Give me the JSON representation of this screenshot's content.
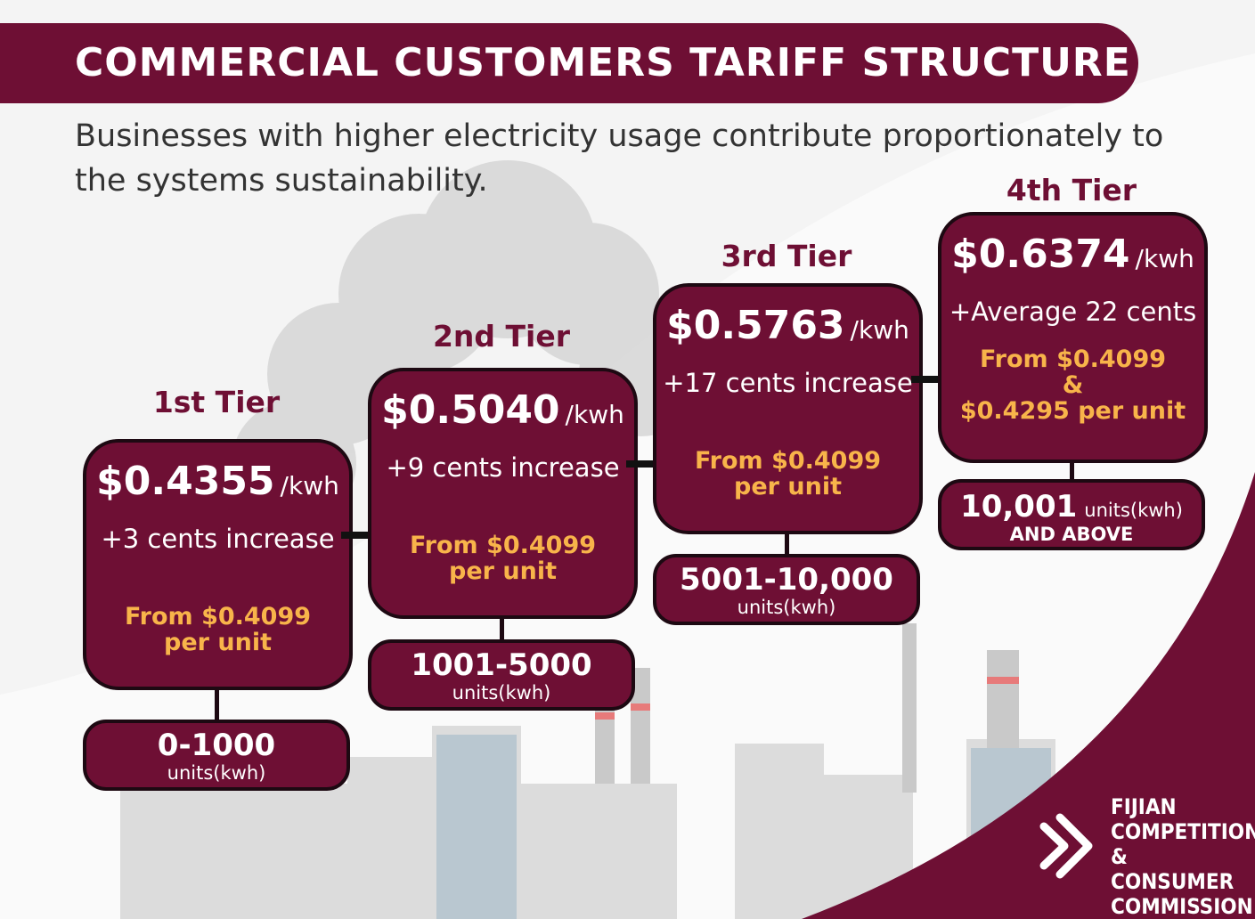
{
  "header": {
    "title": "COMMERCIAL CUSTOMERS TARIFF STRUCTURE",
    "subtitle": "Businesses with higher electricity usage contribute proportionately to the systems sustainability."
  },
  "tiers": [
    {
      "name": "1st Tier",
      "price": "$0.4355",
      "unit": "/kwh",
      "change": "+3 cents increase",
      "from": [
        "From $0.4099",
        "per unit"
      ],
      "range": "0-1000",
      "range_unit": "units(kwh)"
    },
    {
      "name": "2nd Tier",
      "price": "$0.5040",
      "unit": "/kwh",
      "change": "+9 cents increase",
      "from": [
        "From $0.4099",
        "per unit"
      ],
      "range": "1001-5000",
      "range_unit": "units(kwh)"
    },
    {
      "name": "3rd Tier",
      "price": "$0.5763",
      "unit": "/kwh",
      "change": "+17 cents increase",
      "from": [
        "From $0.4099",
        "per unit"
      ],
      "range": "5001-10,000",
      "range_unit": "units(kwh)"
    },
    {
      "name": "4th Tier",
      "price": "$0.6374",
      "unit": "/kwh",
      "change": "+Average 22 cents",
      "from": [
        "From $0.4099",
        "&",
        "$0.4295 per unit"
      ],
      "range": "10,001",
      "range_unit": "units(kwh)",
      "range_extra": "AND ABOVE"
    }
  ],
  "logo": {
    "lines": [
      "FIJIAN",
      "COMPETITION &",
      "CONSUMER",
      "COMMISSION"
    ]
  }
}
